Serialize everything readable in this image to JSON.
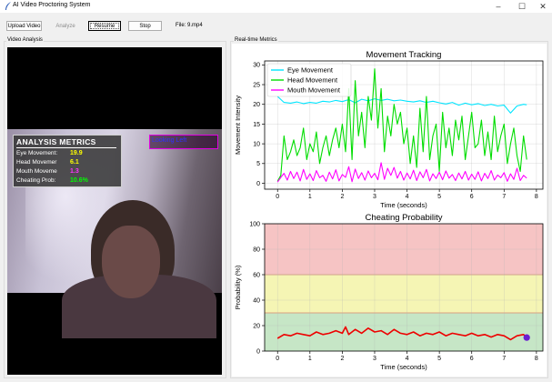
{
  "window": {
    "title": "AI Video Proctoring System"
  },
  "toolbar": {
    "upload_label": "Upload Video",
    "analyze_label": "Analyze",
    "resume_label": "Resume",
    "stop_label": "Stop",
    "file_label": "File: 9.mp4"
  },
  "video_panel": {
    "label": "Video Analysis",
    "overlay": {
      "title": "ANALYSIS METRICS",
      "rows": [
        {
          "label": "Eye Movement:",
          "value": "19.9",
          "color": "#ffff00"
        },
        {
          "label": "Head Movemer",
          "value": "6.1",
          "color": "#ffff00"
        },
        {
          "label": "Mouth Moveme",
          "value": "1.3",
          "color": "#ff33ff"
        },
        {
          "label": "Cheating Prob:",
          "value": "10.6%",
          "color": "#00ff00"
        }
      ],
      "alert_text": "Looking Left",
      "alert_color": "#3030ff",
      "alert_border": "#e000e0"
    }
  },
  "metrics_panel": {
    "label": "Real-time Metrics"
  },
  "chart_data": [
    {
      "type": "line",
      "title": "Movement Tracking",
      "xlabel": "Time (seconds)",
      "ylabel": "Movement Intensity",
      "xlim": [
        -0.4,
        8.2
      ],
      "ylim": [
        -1.5,
        31
      ],
      "xticks": [
        0,
        1,
        2,
        3,
        4,
        5,
        6,
        7,
        8
      ],
      "yticks": [
        0,
        5,
        10,
        15,
        20,
        25,
        30
      ],
      "grid": true,
      "legend": "top-left",
      "series": [
        {
          "name": "Eye Movement",
          "color": "#00e5ff",
          "x": [
            0,
            0.2,
            0.4,
            0.6,
            0.8,
            1.0,
            1.2,
            1.4,
            1.6,
            1.8,
            2.0,
            2.2,
            2.4,
            2.6,
            2.8,
            3.0,
            3.2,
            3.4,
            3.6,
            3.8,
            4.0,
            4.2,
            4.4,
            4.6,
            4.8,
            5.0,
            5.2,
            5.4,
            5.6,
            5.8,
            6.0,
            6.2,
            6.4,
            6.6,
            6.8,
            7.0,
            7.2,
            7.4,
            7.6,
            7.7
          ],
          "values": [
            22,
            20.5,
            20.3,
            20.6,
            20.2,
            20.5,
            20.3,
            20.8,
            20.6,
            21.0,
            20.7,
            21.2,
            20.4,
            21.3,
            20.9,
            21.4,
            21.0,
            21.3,
            20.9,
            21.1,
            20.8,
            20.6,
            20.9,
            20.5,
            20.8,
            20.4,
            20.1,
            20.5,
            19.8,
            20.3,
            19.9,
            20.2,
            19.7,
            20.0,
            19.6,
            19.8,
            17.8,
            19.6,
            20.0,
            19.9
          ]
        },
        {
          "name": "Head Movement",
          "color": "#00dd00",
          "x": [
            0,
            0.1,
            0.2,
            0.3,
            0.4,
            0.5,
            0.6,
            0.7,
            0.8,
            0.9,
            1.0,
            1.1,
            1.2,
            1.3,
            1.4,
            1.5,
            1.6,
            1.7,
            1.8,
            1.9,
            2.0,
            2.1,
            2.2,
            2.3,
            2.4,
            2.5,
            2.6,
            2.7,
            2.8,
            2.9,
            3.0,
            3.1,
            3.2,
            3.3,
            3.4,
            3.5,
            3.6,
            3.7,
            3.8,
            3.9,
            4.0,
            4.1,
            4.2,
            4.3,
            4.4,
            4.5,
            4.6,
            4.7,
            4.8,
            4.9,
            5.0,
            5.1,
            5.2,
            5.3,
            5.4,
            5.5,
            5.6,
            5.7,
            5.8,
            5.9,
            6.0,
            6.1,
            6.2,
            6.3,
            6.4,
            6.5,
            6.6,
            6.7,
            6.8,
            6.9,
            7.0,
            7.1,
            7.2,
            7.3,
            7.4,
            7.5,
            7.6,
            7.7
          ],
          "values": [
            0.5,
            2,
            12,
            6,
            8,
            11,
            7,
            9,
            14,
            6,
            10,
            8,
            13,
            5,
            9,
            12,
            7,
            11,
            14,
            9,
            15,
            8,
            24,
            6,
            26,
            12,
            18,
            9,
            22,
            16,
            29,
            14,
            24,
            8,
            17,
            12,
            20,
            15,
            18,
            10,
            14,
            5,
            12,
            4,
            19,
            8,
            22,
            6,
            12,
            15,
            3,
            18,
            9,
            14,
            7,
            16,
            11,
            17,
            6,
            12,
            18,
            9,
            10,
            16,
            7,
            13,
            6,
            17,
            8,
            12,
            15,
            5,
            10,
            14,
            7,
            3,
            12,
            6
          ]
        },
        {
          "name": "Mouth Movement",
          "color": "#ff00ff",
          "x": [
            0,
            0.1,
            0.2,
            0.3,
            0.4,
            0.5,
            0.6,
            0.7,
            0.8,
            0.9,
            1.0,
            1.1,
            1.2,
            1.3,
            1.4,
            1.5,
            1.6,
            1.7,
            1.8,
            1.9,
            2.0,
            2.1,
            2.2,
            2.3,
            2.4,
            2.5,
            2.6,
            2.7,
            2.8,
            2.9,
            3.0,
            3.1,
            3.2,
            3.3,
            3.4,
            3.5,
            3.6,
            3.7,
            3.8,
            3.9,
            4.0,
            4.1,
            4.2,
            4.3,
            4.4,
            4.5,
            4.6,
            4.7,
            4.8,
            4.9,
            5.0,
            5.1,
            5.2,
            5.3,
            5.4,
            5.5,
            5.6,
            5.7,
            5.8,
            5.9,
            6.0,
            6.1,
            6.2,
            6.3,
            6.4,
            6.5,
            6.6,
            6.7,
            6.8,
            6.9,
            7.0,
            7.1,
            7.2,
            7.3,
            7.4,
            7.5,
            7.6,
            7.7
          ],
          "values": [
            0.3,
            1.5,
            2.5,
            0.8,
            3.0,
            1.2,
            2.8,
            0.6,
            3.5,
            1.0,
            2.4,
            0.7,
            3.2,
            1.4,
            2.0,
            0.5,
            2.8,
            1.1,
            3.4,
            0.6,
            2.2,
            1.5,
            4.2,
            0.4,
            3.6,
            1.2,
            2.7,
            0.8,
            3.1,
            1.4,
            2.5,
            0.9,
            5.2,
            1.0,
            3.8,
            2.0,
            4.0,
            1.3,
            3.0,
            0.8,
            2.6,
            1.1,
            3.3,
            0.7,
            2.9,
            1.4,
            3.5,
            0.6,
            2.4,
            1.2,
            2.8,
            0.9,
            3.1,
            1.3,
            2.2,
            0.7,
            2.6,
            1.1,
            3.0,
            0.8,
            2.3,
            1.0,
            2.9,
            0.6,
            2.5,
            1.2,
            3.2,
            0.8,
            2.1,
            1.4,
            2.7,
            0.5,
            2.4,
            1.0,
            3.8,
            0.7,
            2.0,
            1.3
          ]
        }
      ]
    },
    {
      "type": "line",
      "title": "Cheating Probability",
      "xlabel": "Time (seconds)",
      "ylabel": "Probability (%)",
      "xlim": [
        -0.4,
        8.2
      ],
      "ylim": [
        0,
        100
      ],
      "xticks": [
        0,
        1,
        2,
        3,
        4,
        5,
        6,
        7,
        8
      ],
      "yticks": [
        0,
        20,
        40,
        60,
        80,
        100
      ],
      "grid": true,
      "bands": [
        {
          "from": 0,
          "to": 30,
          "color": "#c6e6c6"
        },
        {
          "from": 30,
          "to": 60,
          "color": "#f5f5b4"
        },
        {
          "from": 60,
          "to": 100,
          "color": "#f6c4c4"
        }
      ],
      "band_line_color": "#d9a080",
      "series": [
        {
          "name": "Cheating Probability",
          "color": "#ee0000",
          "x": [
            0,
            0.2,
            0.4,
            0.6,
            0.8,
            1.0,
            1.2,
            1.4,
            1.6,
            1.8,
            2.0,
            2.1,
            2.2,
            2.4,
            2.6,
            2.8,
            3.0,
            3.2,
            3.4,
            3.6,
            3.8,
            4.0,
            4.2,
            4.4,
            4.6,
            4.8,
            5.0,
            5.2,
            5.4,
            5.6,
            5.8,
            6.0,
            6.2,
            6.4,
            6.6,
            6.8,
            7.0,
            7.2,
            7.4,
            7.6,
            7.7
          ],
          "values": [
            10,
            13,
            12,
            14,
            13,
            12,
            15,
            13,
            14,
            16,
            14,
            19,
            13,
            17,
            14,
            18,
            15,
            16,
            13,
            17,
            14,
            13,
            15,
            12,
            14,
            13,
            15,
            12,
            14,
            13,
            12,
            14,
            12,
            13,
            11,
            13,
            12,
            9,
            12,
            13,
            10.6
          ]
        }
      ],
      "current_point": {
        "x": 7.7,
        "y": 10.6,
        "color": "#6a1fd0"
      }
    }
  ]
}
